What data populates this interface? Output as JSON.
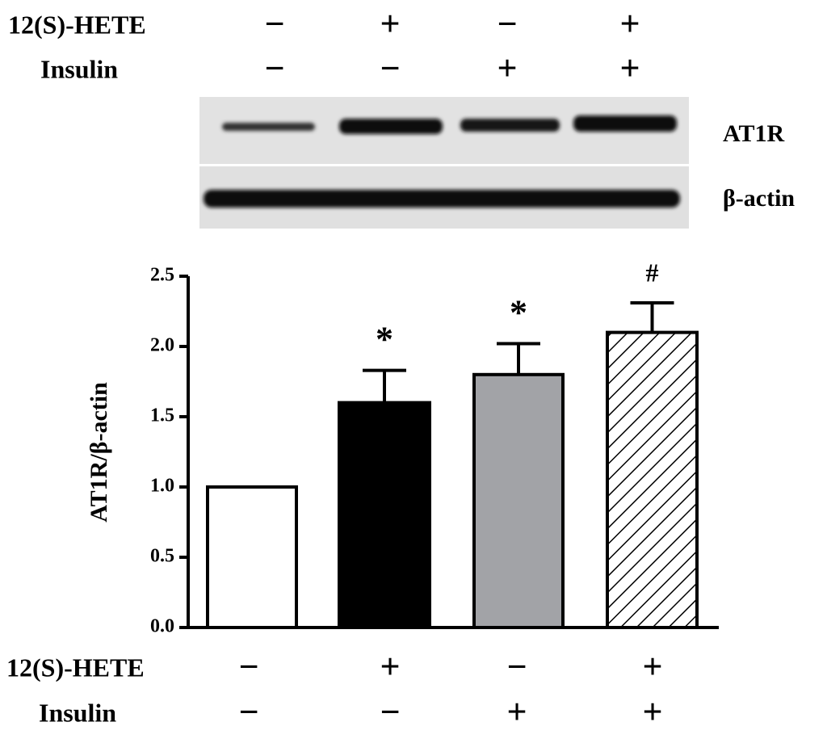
{
  "blot": {
    "treatments": [
      {
        "name": "12(S)-HETE",
        "signs": [
          "−",
          "+",
          "−",
          "+"
        ]
      },
      {
        "name": "Insulin",
        "signs": [
          "−",
          "−",
          "+",
          "+"
        ]
      }
    ],
    "bands": [
      "AT1R",
      "β-actin"
    ]
  },
  "chart_data": {
    "type": "bar",
    "ylabel": "AT1R/β-actin",
    "values": [
      1.0,
      1.6,
      1.8,
      2.1
    ],
    "errors": [
      null,
      0.23,
      0.22,
      0.21
    ],
    "annotations": [
      null,
      "*",
      "*",
      "#"
    ],
    "colors": [
      "#ffffff",
      "#000000",
      "#a2a3a7",
      "#ffffff"
    ],
    "hatch": [
      false,
      false,
      false,
      true
    ],
    "ylim": [
      0,
      2.5
    ],
    "yticks": [
      {
        "value": 0,
        "label": "0.0"
      },
      0.5,
      {
        "value": 1,
        "label": "1.0"
      },
      1.5,
      {
        "value": 2,
        "label": "2.0"
      },
      2.5
    ],
    "treatments": [
      {
        "name": "12(S)-HETE",
        "signs": [
          "−",
          "+",
          "−",
          "+"
        ]
      },
      {
        "name": "Insulin",
        "signs": [
          "−",
          "−",
          "+",
          "+"
        ]
      }
    ]
  }
}
